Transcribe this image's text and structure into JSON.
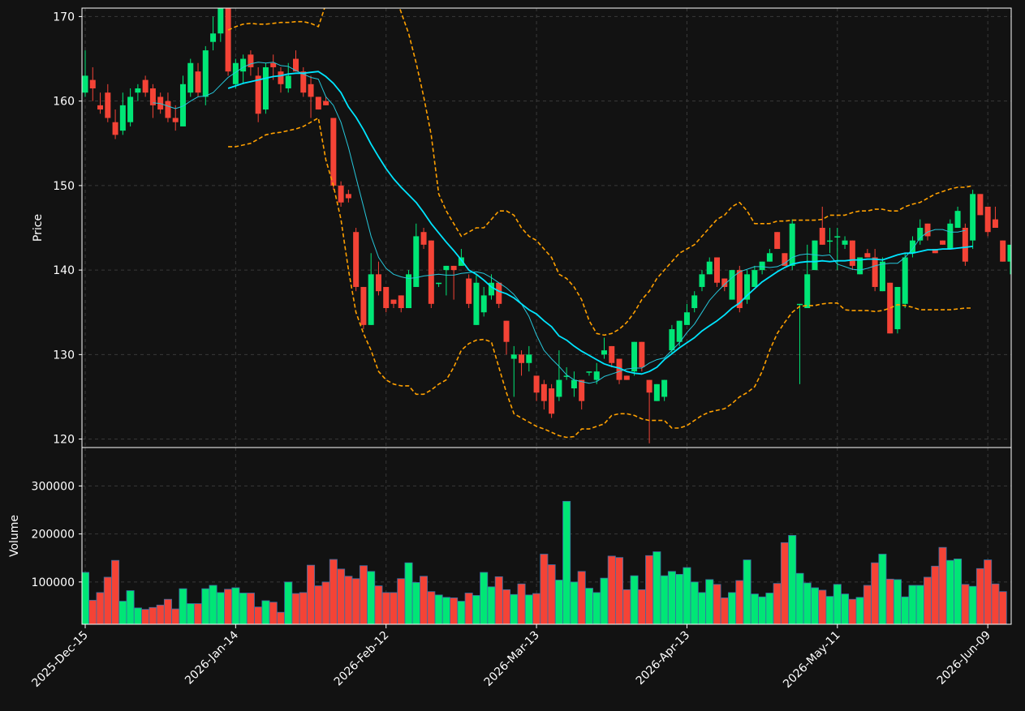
{
  "colors": {
    "background": "#121212",
    "up": "#00e676",
    "down": "#f44336",
    "volume_edge": "#3a6ea5",
    "ma_fast": "#26c6da",
    "ma_slow": "#00e5ff",
    "bands": "#ffa000",
    "grid": "#3a3a3a",
    "axis": "#ffffff"
  },
  "chart_data": {
    "type": "candlestick",
    "price_panel": {
      "ylabel": "Price",
      "ylim": [
        119,
        171
      ],
      "yticks": [
        "120",
        "130",
        "140",
        "150",
        "160",
        "170"
      ],
      "yvalues": [
        120,
        130,
        140,
        150,
        160,
        170
      ]
    },
    "volume_panel": {
      "ylabel": "Volume",
      "ylim": [
        12000,
        380000
      ],
      "yticks": [
        "100000",
        "200000",
        "300000"
      ],
      "yvalues": [
        100000,
        200000,
        300000
      ]
    },
    "x_ticks": [
      {
        "label": "2025-Dec-15",
        "index": 0
      },
      {
        "label": "2026-Jan-14",
        "index": 20
      },
      {
        "label": "2026-Feb-12",
        "index": 40
      },
      {
        "label": "2026-Mar-13",
        "index": 60
      },
      {
        "label": "2026-Apr-13",
        "index": 80
      },
      {
        "label": "2026-May-11",
        "index": 100
      },
      {
        "label": "2026-Jun-09",
        "index": 120
      }
    ],
    "grid": true,
    "ohlc": [
      [
        161,
        166,
        160.5,
        163
      ],
      [
        162.5,
        164,
        160,
        161.5
      ],
      [
        159.5,
        161,
        158.5,
        159
      ],
      [
        161,
        162,
        157.5,
        158
      ],
      [
        157.5,
        159,
        155.5,
        156
      ],
      [
        156.5,
        161,
        156,
        159.5
      ],
      [
        157.5,
        161.5,
        157,
        160.5
      ],
      [
        161,
        162,
        160,
        161.5
      ],
      [
        162.5,
        163,
        160.5,
        161
      ],
      [
        161.5,
        162,
        158,
        159.5
      ],
      [
        160.5,
        161,
        158.5,
        159
      ],
      [
        160,
        161,
        157.5,
        158
      ],
      [
        158,
        159.5,
        156.5,
        157.5
      ],
      [
        157,
        163,
        157,
        162
      ],
      [
        161,
        165,
        160.5,
        164.5
      ],
      [
        163.5,
        164.5,
        160.5,
        161
      ],
      [
        160.5,
        166.5,
        159.5,
        166
      ],
      [
        167,
        170,
        166,
        168
      ],
      [
        168,
        172,
        167,
        171
      ],
      [
        172,
        172,
        163,
        163.5
      ],
      [
        162,
        165,
        161.5,
        164.5
      ],
      [
        163.5,
        165.5,
        162,
        165
      ],
      [
        165.5,
        166,
        163,
        164
      ],
      [
        163,
        164,
        157.5,
        158.5
      ],
      [
        159,
        164.5,
        158.5,
        164
      ],
      [
        164.5,
        165.5,
        162.5,
        164
      ],
      [
        163.5,
        164,
        161,
        162
      ],
      [
        161.5,
        164.5,
        161,
        163
      ],
      [
        165,
        166,
        163.5,
        163.5
      ],
      [
        163.5,
        164,
        160.5,
        161
      ],
      [
        162,
        163,
        158,
        160.5
      ],
      [
        160.5,
        160.5,
        159,
        159
      ],
      [
        160,
        160.5,
        159.5,
        159.5
      ],
      [
        158,
        158,
        149.5,
        150
      ],
      [
        150,
        150.5,
        147.5,
        148
      ],
      [
        149,
        149.5,
        148,
        148.5
      ],
      [
        144.5,
        145,
        137.5,
        138
      ],
      [
        138,
        138,
        133,
        133.5
      ],
      [
        133.5,
        142,
        133.5,
        139.5
      ],
      [
        139.5,
        141,
        137,
        137.5
      ],
      [
        138,
        138,
        135,
        135.5
      ],
      [
        136.5,
        136.5,
        135.5,
        136
      ],
      [
        137,
        137,
        135,
        135.5
      ],
      [
        135.5,
        140,
        135.5,
        139.5
      ],
      [
        138,
        145.5,
        138,
        144
      ],
      [
        144.5,
        145,
        142.5,
        143
      ],
      [
        143.5,
        143.5,
        135.5,
        136
      ],
      [
        138.5,
        138.5,
        138,
        138.5
      ],
      [
        140,
        140.5,
        137,
        140.5
      ],
      [
        140.5,
        140.5,
        136.5,
        140
      ],
      [
        140.5,
        142.5,
        140.5,
        141.5
      ],
      [
        139,
        139.5,
        135.5,
        136
      ],
      [
        133.5,
        139.5,
        133.5,
        138.5
      ],
      [
        135,
        138,
        134.5,
        137
      ],
      [
        137,
        139.5,
        136.5,
        138.5
      ],
      [
        138.5,
        138.5,
        135.5,
        136
      ],
      [
        134,
        134,
        130,
        131.5
      ],
      [
        129.5,
        131,
        125,
        130
      ],
      [
        130,
        130.5,
        127.5,
        129
      ],
      [
        129,
        131,
        128,
        130
      ],
      [
        127.5,
        127.5,
        124.5,
        125.5
      ],
      [
        126.5,
        127,
        123.5,
        124.5
      ],
      [
        126,
        126.5,
        122.5,
        123
      ],
      [
        125,
        130.5,
        124.5,
        127
      ],
      [
        127.5,
        128.5,
        127,
        127.5
      ],
      [
        126,
        128,
        125,
        127
      ],
      [
        127,
        127,
        123.5,
        124.5
      ],
      [
        128,
        128,
        127.5,
        128
      ],
      [
        127,
        129,
        126.5,
        128
      ],
      [
        130,
        132,
        129.5,
        130.5
      ],
      [
        131,
        131,
        128.5,
        129
      ],
      [
        129.5,
        129.5,
        126.5,
        127
      ],
      [
        127.5,
        127.5,
        127,
        127
      ],
      [
        128,
        131.5,
        127.5,
        131.5
      ],
      [
        131.5,
        131.5,
        128,
        128.5
      ],
      [
        127,
        127,
        119.5,
        125.5
      ],
      [
        124.5,
        126.5,
        124.5,
        126.5
      ],
      [
        125,
        127,
        124.5,
        127
      ],
      [
        130.5,
        133.5,
        130,
        133
      ],
      [
        131.5,
        134,
        131,
        134
      ],
      [
        133.5,
        136,
        133.5,
        135
      ],
      [
        135.5,
        137.5,
        135,
        137
      ],
      [
        138,
        140,
        137.5,
        139.5
      ],
      [
        139.5,
        141.5,
        139.5,
        141
      ],
      [
        141.5,
        141.5,
        138,
        138.5
      ],
      [
        139,
        139,
        137.5,
        138
      ],
      [
        136.5,
        140,
        136.5,
        140
      ],
      [
        140,
        140.5,
        135,
        135.5
      ],
      [
        136.5,
        140,
        136,
        139.5
      ],
      [
        138,
        140.5,
        138,
        140
      ],
      [
        140,
        141,
        139.5,
        141
      ],
      [
        141,
        142.5,
        141,
        142
      ],
      [
        144.5,
        144.5,
        142.5,
        142.5
      ],
      [
        142,
        142,
        140.5,
        140.5
      ],
      [
        140.5,
        146,
        140,
        145.5
      ],
      [
        136,
        136,
        126.5,
        136
      ],
      [
        135.5,
        143,
        135.5,
        139.5
      ],
      [
        140,
        143.5,
        140,
        143.5
      ],
      [
        145,
        147.5,
        143,
        143
      ],
      [
        143.5,
        145,
        142,
        143.5
      ],
      [
        144,
        145,
        140,
        144
      ],
      [
        143,
        144,
        142.5,
        143.5
      ],
      [
        143.5,
        143.5,
        140,
        140.5
      ],
      [
        139.5,
        141.5,
        139.5,
        141.5
      ],
      [
        142,
        142.5,
        141.5,
        141.5
      ],
      [
        141.5,
        142.5,
        137.5,
        138
      ],
      [
        137.5,
        141.5,
        137.5,
        141
      ],
      [
        138.5,
        138.5,
        132.5,
        132.5
      ],
      [
        133,
        138,
        132.5,
        138
      ],
      [
        136,
        142,
        135.5,
        141.5
      ],
      [
        142,
        144,
        141.5,
        143.5
      ],
      [
        143.5,
        146,
        143,
        145
      ],
      [
        145.5,
        145.5,
        143.5,
        144
      ],
      [
        142.5,
        142.5,
        142,
        142
      ],
      [
        143.5,
        143.5,
        143,
        143
      ],
      [
        142.5,
        146,
        142.5,
        145.5
      ],
      [
        145,
        147.5,
        145,
        147
      ],
      [
        145,
        145.5,
        140.5,
        141
      ],
      [
        143.5,
        149.5,
        142.5,
        149
      ],
      [
        149,
        149,
        146.5,
        146.5
      ],
      [
        147.5,
        147.5,
        144,
        144.5
      ],
      [
        146,
        147.5,
        145,
        145
      ],
      [
        143.5,
        143.5,
        141,
        141
      ],
      [
        141,
        142.5,
        139.5,
        143
      ],
      [
        144,
        149,
        144,
        145
      ]
    ],
    "volume": [
      120000,
      62000,
      78000,
      110000,
      145000,
      60000,
      82000,
      46000,
      43000,
      47000,
      52000,
      64000,
      44000,
      86000,
      55000,
      55000,
      86000,
      93000,
      78000,
      85000,
      88000,
      77000,
      77000,
      48000,
      61000,
      58000,
      37000,
      100000,
      76000,
      78000,
      135000,
      92000,
      100000,
      147000,
      127000,
      112000,
      107000,
      134000,
      122000,
      92000,
      78000,
      78000,
      107000,
      140000,
      99000,
      112000,
      80000,
      73000,
      68000,
      67000,
      60000,
      77000,
      72000,
      120000,
      90000,
      111000,
      84000,
      74000,
      96000,
      73000,
      76000,
      158000,
      136000,
      104000,
      268000,
      100000,
      122000,
      87000,
      78000,
      108000,
      154000,
      151000,
      84000,
      113000,
      84000,
      155000,
      163000,
      113000,
      122000,
      116000,
      130000,
      100000,
      78000,
      105000,
      95000,
      67000,
      78000,
      103000,
      146000,
      75000,
      69000,
      77000,
      97000,
      182000,
      197000,
      118000,
      98000,
      88000,
      83000,
      70000,
      95000,
      75000,
      64000,
      68000,
      93000,
      140000,
      158000,
      106000,
      105000,
      69000,
      93000,
      93000,
      110000,
      133000,
      172000,
      145000,
      148000,
      95000,
      91000,
      128000,
      146000,
      96000,
      80000
    ],
    "ma_slow": {
      "start": 19,
      "values": [
        161.5,
        161.8,
        162.1,
        162.3,
        162.5,
        162.7,
        162.9,
        163.0,
        163.2,
        163.3,
        163.3,
        163.4,
        163.5,
        162.9,
        162.1,
        161.0,
        159.3,
        158.1,
        156.6,
        154.9,
        153.4,
        152.0,
        150.8,
        149.8,
        148.9,
        148.0,
        146.8,
        145.5,
        144.4,
        143.3,
        142.3,
        141.2,
        140.0,
        139.5,
        138.8,
        138.0,
        137.5,
        137.2,
        136.7,
        136.0,
        135.3,
        134.8,
        134.0,
        133.3,
        132.2,
        131.7,
        131.0,
        130.4,
        129.9,
        129.4,
        128.9,
        128.6,
        128.4,
        128.0,
        127.8,
        127.7,
        128.0,
        128.5,
        129.4,
        130.1,
        130.8,
        131.4,
        132.0,
        132.8,
        133.4,
        134.0,
        134.7,
        135.5,
        136.1,
        137.0,
        137.8,
        138.6,
        139.2,
        139.8,
        140.3,
        140.7,
        140.9,
        141.0,
        141.0,
        141.1,
        141.0,
        141.1,
        141.1,
        141.2,
        141.2,
        141.3,
        141.3,
        141.2,
        141.5,
        141.8,
        142.0,
        142.0,
        142.2,
        142.4,
        142.4,
        142.5,
        142.5,
        142.6,
        142.7,
        142.8
      ]
    },
    "ma_fast": {
      "start": 9,
      "values": [
        159.8,
        159.7,
        159.4,
        159.1,
        159.4,
        160.0,
        160.5,
        160.6,
        161.0,
        161.9,
        162.8,
        163.4,
        164.0,
        164.4,
        164.6,
        164.5,
        164.6,
        164.2,
        164.1,
        163.6,
        163.2,
        162.8,
        162.6,
        160.5,
        159.5,
        157.5,
        154.5,
        151.0,
        147.5,
        144.0,
        141.5,
        140.2,
        139.5,
        139.2,
        139.0,
        139.1,
        139.3,
        139.4,
        139.5,
        139.4,
        139.4,
        139.6,
        139.7,
        139.8,
        139.6,
        139.1,
        138.5,
        137.9,
        137.1,
        136.0,
        134.5,
        132.3,
        130.5,
        129.5,
        128.6,
        127.6,
        127.0,
        126.8,
        126.6,
        126.8,
        127.4,
        127.7,
        128.0,
        128.3,
        128.4,
        128.4,
        129.0,
        129.4,
        129.6,
        130.5,
        131.4,
        132.6,
        133.6,
        135.0,
        136.4,
        137.4,
        138.3,
        139.1,
        139.8,
        140.1,
        140.4,
        140.4,
        140.3,
        140.4,
        140.8,
        141.5,
        141.8,
        141.9,
        141.8,
        141.7,
        141.8,
        140.7,
        140.4,
        140.1,
        140.0,
        140.2,
        140.5,
        140.7,
        140.8,
        140.8,
        141.5,
        142.5,
        143.8,
        144.5,
        144.8,
        144.8,
        144.5,
        144.5,
        144.7
      ]
    },
    "band_upper": {
      "start": 19,
      "values": [
        168.4,
        168.8,
        169.1,
        169.2,
        169.1,
        169.1,
        169.2,
        169.3,
        169.3,
        169.4,
        169.4,
        169.2,
        168.8,
        171.5,
        175.0,
        178.0,
        180.0,
        181.0,
        181.0,
        180.0,
        178.5,
        176.0,
        173.0,
        170.5,
        168.0,
        164.5,
        160.5,
        156.0,
        149.0,
        147.0,
        145.5,
        144.0,
        144.5,
        145.0,
        145.0,
        146.0,
        147.0,
        147.0,
        146.5,
        145.0,
        144.0,
        143.5,
        142.5,
        141.5,
        139.5,
        139.0,
        138.0,
        136.5,
        134.0,
        132.5,
        132.3,
        132.5,
        133.0,
        133.8,
        135.0,
        136.5,
        137.5,
        139.0,
        140.0,
        141.0,
        142.0,
        142.5,
        143.0,
        144.0,
        145.0,
        146.0,
        146.5,
        147.5,
        148.0,
        147.0,
        145.5,
        145.5,
        145.5,
        145.8,
        145.8,
        145.9,
        145.9,
        145.9,
        145.9,
        146.0,
        146.5,
        146.5,
        146.5,
        146.8,
        147.0,
        147.0,
        147.2,
        147.2,
        147.0,
        147.0,
        147.5,
        147.8,
        148.0,
        148.5,
        149.0,
        149.3,
        149.6,
        149.8,
        149.8,
        150.0
      ]
    },
    "band_lower": {
      "start": 19,
      "values": [
        154.6,
        154.6,
        154.8,
        155.0,
        155.5,
        156.0,
        156.2,
        156.3,
        156.5,
        156.7,
        157.0,
        157.5,
        158.0,
        153.0,
        150.0,
        146.0,
        140.0,
        135.0,
        132.5,
        130.5,
        128.0,
        127.0,
        126.5,
        126.3,
        126.3,
        125.3,
        125.3,
        125.8,
        126.5,
        127.0,
        128.5,
        130.5,
        131.3,
        131.7,
        131.8,
        131.5,
        128.5,
        125.5,
        123.0,
        122.5,
        122.0,
        121.5,
        121.2,
        120.8,
        120.4,
        120.2,
        120.3,
        121.2,
        121.2,
        121.5,
        121.8,
        122.8,
        123.0,
        123.0,
        122.8,
        122.4,
        122.2,
        122.2,
        122.2,
        121.3,
        121.3,
        121.6,
        122.2,
        122.8,
        123.2,
        123.4,
        123.6,
        124.2,
        125.0,
        125.5,
        126.2,
        128.0,
        130.5,
        132.5,
        133.8,
        135.0,
        135.7,
        135.8,
        135.8,
        136.0,
        136.1,
        136.1,
        135.3,
        135.2,
        135.2,
        135.2,
        135.1,
        135.2,
        135.5,
        135.9,
        135.8,
        135.6,
        135.3,
        135.3,
        135.3,
        135.3,
        135.3,
        135.4,
        135.5,
        135.5
      ]
    }
  }
}
